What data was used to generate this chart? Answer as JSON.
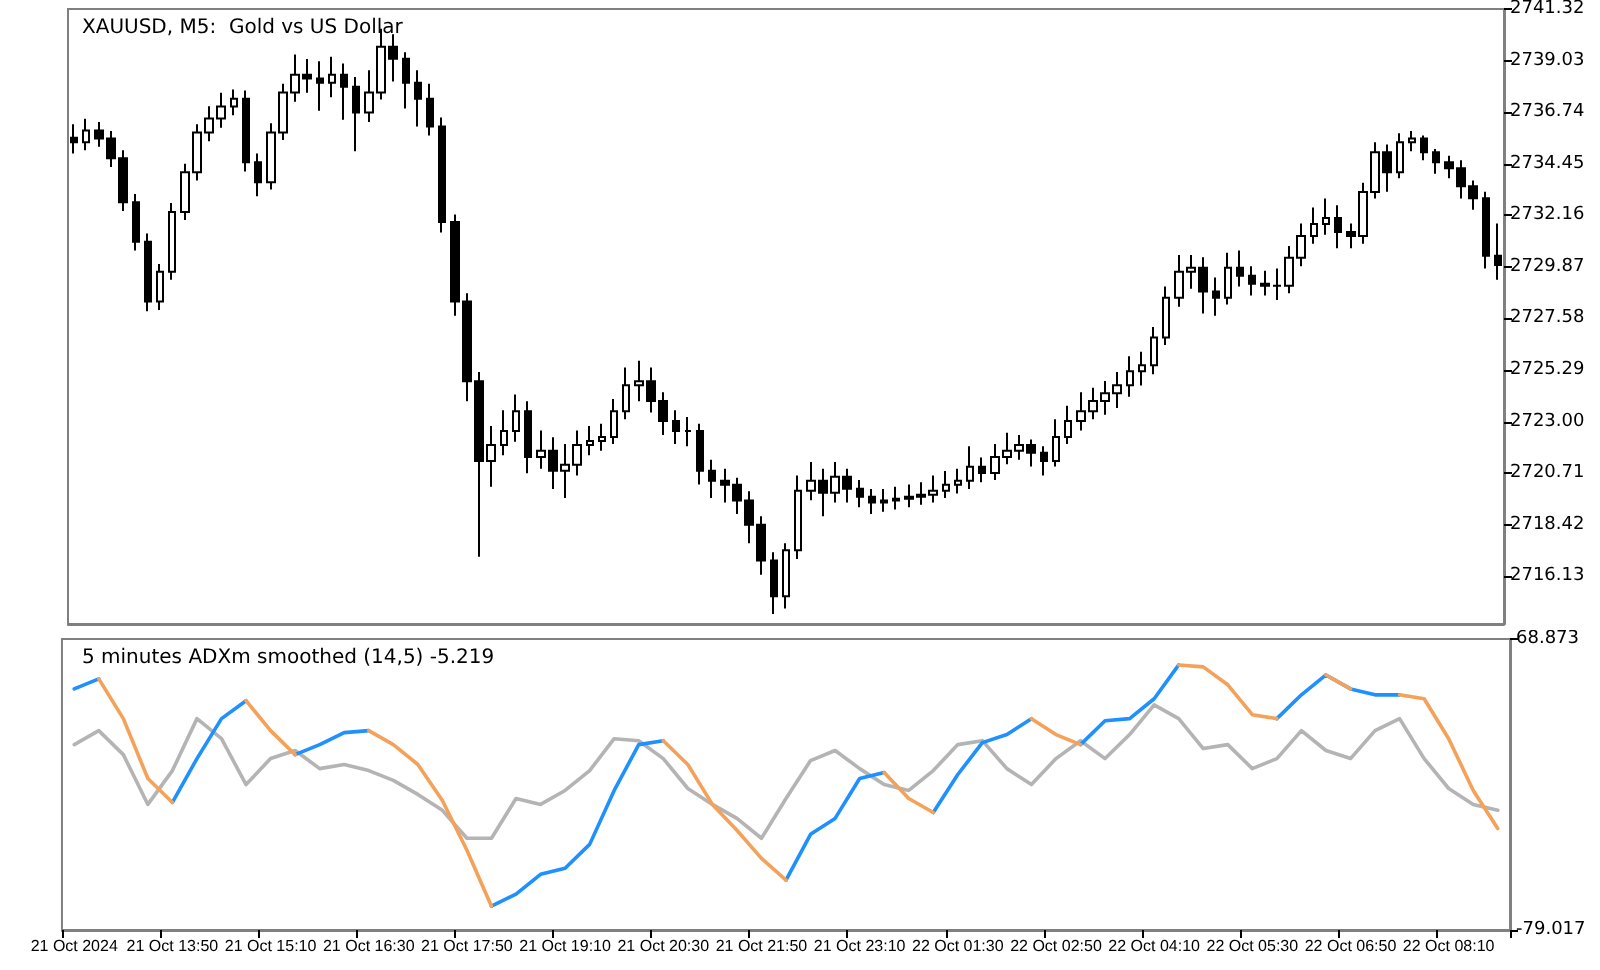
{
  "chart_data": [
    {
      "type": "candlestick",
      "title": "XAUUSD, M5:  Gold vs US Dollar",
      "color": "#000000",
      "tick_labels": "y",
      "grid": false,
      "ylim": [
        2714.01,
        2741.32
      ],
      "yticks": [
        2716.13,
        2718.42,
        2720.71,
        {
          "value": 2723,
          "label": "2723.00"
        },
        2725.29,
        2727.58,
        2729.87,
        2732.16,
        2734.45,
        2736.74,
        2739.03,
        2741.32
      ],
      "ohlc": [
        [
          2735.6,
          2736.2,
          2734.9,
          2735.4
        ],
        [
          2735.4,
          2736.45,
          2735.05,
          2735.93
        ],
        [
          2735.93,
          2736.3,
          2735.2,
          2735.57
        ],
        [
          2735.57,
          2735.9,
          2734.3,
          2734.69
        ],
        [
          2734.69,
          2735.05,
          2732.35,
          2732.74
        ],
        [
          2732.74,
          2733.1,
          2730.6,
          2730.98
        ],
        [
          2730.98,
          2731.35,
          2727.9,
          2728.33
        ],
        [
          2728.33,
          2730.0,
          2727.95,
          2729.65
        ],
        [
          2729.65,
          2732.7,
          2729.3,
          2732.3
        ],
        [
          2732.3,
          2734.45,
          2731.95,
          2734.07
        ],
        [
          2734.07,
          2736.2,
          2733.7,
          2735.84
        ],
        [
          2735.84,
          2737.0,
          2735.45,
          2736.46
        ],
        [
          2736.46,
          2737.6,
          2736.05,
          2736.99
        ],
        [
          2736.99,
          2737.75,
          2736.6,
          2737.34
        ],
        [
          2737.34,
          2737.7,
          2734.1,
          2734.51
        ],
        [
          2734.51,
          2734.9,
          2733.0,
          2733.63
        ],
        [
          2733.63,
          2736.25,
          2733.3,
          2735.84
        ],
        [
          2735.84,
          2738.0,
          2735.5,
          2737.61
        ],
        [
          2737.61,
          2739.3,
          2737.2,
          2738.4
        ],
        [
          2738.4,
          2739.1,
          2737.6,
          2738.23
        ],
        [
          2738.23,
          2739.0,
          2736.8,
          2738.05
        ],
        [
          2738.05,
          2739.2,
          2737.4,
          2738.4
        ],
        [
          2738.4,
          2738.9,
          2736.4,
          2737.87
        ],
        [
          2737.87,
          2738.3,
          2735.0,
          2736.72
        ],
        [
          2736.72,
          2738.6,
          2736.3,
          2737.61
        ],
        [
          2737.61,
          2740.44,
          2737.3,
          2739.64
        ],
        [
          2739.64,
          2740.2,
          2738.1,
          2739.11
        ],
        [
          2739.11,
          2739.4,
          2736.9,
          2738.05
        ],
        [
          2738.05,
          2738.6,
          2736.1,
          2737.34
        ],
        [
          2737.34,
          2738.0,
          2735.7,
          2736.1
        ],
        [
          2736.1,
          2736.5,
          2731.4,
          2731.86
        ],
        [
          2731.86,
          2732.2,
          2727.7,
          2728.33
        ],
        [
          2728.33,
          2728.7,
          2723.9,
          2724.79
        ],
        [
          2724.79,
          2725.2,
          2717.0,
          2721.25
        ],
        [
          2721.25,
          2722.8,
          2720.1,
          2721.96
        ],
        [
          2721.96,
          2723.5,
          2721.5,
          2722.58
        ],
        [
          2722.58,
          2724.2,
          2722.1,
          2723.46
        ],
        [
          2723.46,
          2723.9,
          2720.7,
          2721.43
        ],
        [
          2721.43,
          2722.6,
          2720.9,
          2721.7
        ],
        [
          2721.7,
          2722.3,
          2720.0,
          2720.81
        ],
        [
          2720.81,
          2722.0,
          2719.6,
          2721.08
        ],
        [
          2721.08,
          2722.6,
          2720.6,
          2721.96
        ],
        [
          2721.96,
          2722.8,
          2721.5,
          2722.14
        ],
        [
          2722.14,
          2722.9,
          2721.7,
          2722.31
        ],
        [
          2722.31,
          2724.0,
          2722.0,
          2723.46
        ],
        [
          2723.46,
          2725.4,
          2723.1,
          2724.61
        ],
        [
          2724.61,
          2725.7,
          2723.9,
          2724.79
        ],
        [
          2724.79,
          2725.4,
          2723.4,
          2723.91
        ],
        [
          2723.91,
          2724.3,
          2722.4,
          2723.02
        ],
        [
          2723.02,
          2723.5,
          2722.0,
          2722.58
        ],
        [
          2722.58,
          2723.2,
          2721.9,
          2722.58
        ],
        [
          2722.58,
          2722.9,
          2720.2,
          2720.81
        ],
        [
          2720.81,
          2721.3,
          2719.6,
          2720.37
        ],
        [
          2720.37,
          2720.9,
          2719.4,
          2720.19
        ],
        [
          2720.19,
          2720.5,
          2718.9,
          2719.49
        ],
        [
          2719.49,
          2719.9,
          2717.6,
          2718.42
        ],
        [
          2718.42,
          2718.8,
          2716.2,
          2716.83
        ],
        [
          2716.83,
          2717.2,
          2714.45,
          2715.24
        ],
        [
          2715.24,
          2717.6,
          2714.7,
          2717.28
        ],
        [
          2717.28,
          2720.6,
          2716.9,
          2719.93
        ],
        [
          2719.93,
          2721.2,
          2719.5,
          2720.37
        ],
        [
          2720.37,
          2720.9,
          2718.8,
          2719.84
        ],
        [
          2719.84,
          2721.2,
          2719.4,
          2720.55
        ],
        [
          2720.55,
          2720.9,
          2719.4,
          2720.02
        ],
        [
          2720.02,
          2720.4,
          2719.2,
          2719.66
        ],
        [
          2719.66,
          2720.0,
          2718.9,
          2719.4
        ],
        [
          2719.4,
          2720.0,
          2719.0,
          2719.49
        ],
        [
          2719.49,
          2720.1,
          2719.1,
          2719.57
        ],
        [
          2719.57,
          2720.2,
          2719.2,
          2719.66
        ],
        [
          2719.66,
          2720.3,
          2719.3,
          2719.75
        ],
        [
          2719.75,
          2720.6,
          2719.4,
          2719.93
        ],
        [
          2719.93,
          2720.8,
          2719.6,
          2720.19
        ],
        [
          2720.19,
          2720.9,
          2719.8,
          2720.37
        ],
        [
          2720.37,
          2721.9,
          2720.0,
          2720.99
        ],
        [
          2720.99,
          2721.4,
          2720.3,
          2720.72
        ],
        [
          2720.72,
          2722.0,
          2720.4,
          2721.43
        ],
        [
          2721.43,
          2722.5,
          2721.1,
          2721.7
        ],
        [
          2721.7,
          2722.4,
          2721.3,
          2721.96
        ],
        [
          2721.96,
          2722.2,
          2721.0,
          2721.61
        ],
        [
          2721.61,
          2721.9,
          2720.6,
          2721.25
        ],
        [
          2721.25,
          2723.1,
          2721.0,
          2722.31
        ],
        [
          2722.31,
          2723.7,
          2722.0,
          2723.02
        ],
        [
          2723.02,
          2724.3,
          2722.6,
          2723.46
        ],
        [
          2723.46,
          2724.5,
          2723.1,
          2723.91
        ],
        [
          2723.91,
          2724.8,
          2723.3,
          2724.26
        ],
        [
          2724.26,
          2725.2,
          2723.6,
          2724.61
        ],
        [
          2724.61,
          2725.9,
          2724.1,
          2725.23
        ],
        [
          2725.23,
          2726.1,
          2724.6,
          2725.5
        ],
        [
          2725.5,
          2727.2,
          2725.1,
          2726.73
        ],
        [
          2726.73,
          2729.0,
          2726.4,
          2728.5
        ],
        [
          2728.5,
          2730.4,
          2728.1,
          2729.65
        ],
        [
          2729.65,
          2730.4,
          2728.9,
          2729.83
        ],
        [
          2729.83,
          2730.3,
          2727.8,
          2728.77
        ],
        [
          2728.77,
          2729.4,
          2727.7,
          2728.5
        ],
        [
          2728.5,
          2730.5,
          2728.2,
          2729.83
        ],
        [
          2729.83,
          2730.6,
          2729.0,
          2729.47
        ],
        [
          2729.47,
          2729.9,
          2728.6,
          2729.12
        ],
        [
          2729.12,
          2729.7,
          2728.6,
          2729.03
        ],
        [
          2729.03,
          2729.8,
          2728.4,
          2729.03
        ],
        [
          2729.03,
          2730.8,
          2728.7,
          2730.27
        ],
        [
          2730.27,
          2731.8,
          2729.9,
          2731.24
        ],
        [
          2731.24,
          2732.5,
          2730.9,
          2731.77
        ],
        [
          2731.77,
          2732.9,
          2731.3,
          2732.04
        ],
        [
          2732.04,
          2732.6,
          2730.7,
          2731.42
        ],
        [
          2731.42,
          2731.8,
          2730.7,
          2731.24
        ],
        [
          2731.24,
          2733.6,
          2730.9,
          2733.19
        ],
        [
          2733.19,
          2735.4,
          2732.9,
          2734.96
        ],
        [
          2734.96,
          2735.3,
          2733.2,
          2734.07
        ],
        [
          2734.07,
          2735.8,
          2733.8,
          2735.4
        ],
        [
          2735.4,
          2735.9,
          2735.0,
          2735.57
        ],
        [
          2735.57,
          2735.7,
          2734.6,
          2734.96
        ],
        [
          2734.96,
          2735.1,
          2734.0,
          2734.51
        ],
        [
          2734.51,
          2734.8,
          2733.8,
          2734.25
        ],
        [
          2734.25,
          2734.6,
          2732.9,
          2733.45
        ],
        [
          2733.45,
          2733.7,
          2732.4,
          2732.92
        ],
        [
          2732.92,
          2733.2,
          2729.8,
          2730.36
        ],
        [
          2730.36,
          2731.8,
          2729.3,
          2729.95
        ]
      ]
    },
    {
      "type": "line",
      "title": "5 minutes ADXm smoothed (14,5) -5.219",
      "grid": false,
      "marker": "none",
      "line_style": "solid",
      "categories": [
        "21 Oct 2024",
        null,
        null,
        null,
        "21 Oct 13:50",
        null,
        null,
        null,
        "21 Oct 15:10",
        null,
        null,
        null,
        "21 Oct 16:30",
        null,
        null,
        null,
        "21 Oct 17:50",
        null,
        null,
        null,
        "21 Oct 19:10",
        null,
        null,
        null,
        "21 Oct 20:30",
        null,
        null,
        null,
        "21 Oct 21:50",
        null,
        null,
        null,
        "21 Oct 23:10",
        null,
        null,
        null,
        "22 Oct 01:30",
        null,
        null,
        null,
        "22 Oct 02:50",
        null,
        null,
        null,
        "22 Oct 04:10",
        null,
        null,
        null,
        "22 Oct 05:30",
        null,
        null,
        null,
        "22 Oct 06:50",
        null,
        null,
        null,
        "22 Oct 08:10",
        null,
        null
      ],
      "ylim": [
        -79.017,
        68.873
      ],
      "yticks": [
        -79.017,
        68.873
      ],
      "series": [
        {
          "color": "#b4b4b4",
          "values": [
            15.2,
            22.3,
            10.1,
            -15.2,
            2.0,
            28.4,
            18.2,
            -5.1,
            8.1,
            12.2,
            3.0,
            5.1,
            2.0,
            -3.0,
            -10.1,
            -18.2,
            -32.4,
            -32.4,
            -12.2,
            -15.2,
            -8.1,
            2.0,
            18.2,
            17.2,
            8.1,
            -7.1,
            -15.2,
            -22.3,
            -32.4,
            -12.2,
            7.1,
            12.2,
            3.0,
            -5.1,
            -8.1,
            2.0,
            15.2,
            17.2,
            3.0,
            -5.1,
            8.1,
            17.2,
            8.1,
            20.3,
            35.4,
            28.4,
            13.2,
            15.2,
            3.0,
            8.1,
            22.3,
            12.2,
            8.1,
            22.3,
            28.4,
            8.1,
            -7.1,
            -15.2,
            -18.2
          ]
        },
        {
          "color": "#1e90ff",
          "values": [
            43.5,
            48.6,
            null,
            null,
            -14.2,
            8.1,
            28.4,
            37.5,
            null,
            10.1,
            15.2,
            21.3,
            22.3,
            null,
            null,
            null,
            null,
            -66.9,
            -60.8,
            -50.7,
            -47.6,
            -35.5,
            -8.1,
            15.2,
            17.2,
            null,
            null,
            null,
            null,
            -53.7,
            -30.4,
            -22.3,
            -2.0,
            1.0,
            null,
            -19.3,
            0.0,
            16.2,
            20.3,
            28.4,
            null,
            15.2,
            27.3,
            28.4,
            38.5,
            55.7,
            null,
            null,
            null,
            28.4,
            40.5,
            50.6,
            43.5,
            40.5,
            40.5,
            null,
            null,
            null,
            null
          ]
        },
        {
          "color": "#f4a15a",
          "values": [
            null,
            48.6,
            28.4,
            -2.0,
            -14.2,
            null,
            null,
            37.5,
            22.3,
            10.1,
            null,
            null,
            22.3,
            15.2,
            5.1,
            -13.2,
            -38.5,
            -66.9,
            null,
            null,
            null,
            null,
            null,
            null,
            17.2,
            5.1,
            -15.2,
            -28.3,
            -42.6,
            -53.7,
            null,
            null,
            null,
            1.0,
            -12.2,
            -19.3,
            null,
            null,
            null,
            28.4,
            20.3,
            15.2,
            null,
            null,
            null,
            55.7,
            54.7,
            45.6,
            30.4,
            28.4,
            null,
            50.6,
            43.5,
            null,
            40.5,
            38.5,
            18.2,
            -8.1,
            -27.4
          ]
        }
      ]
    }
  ]
}
